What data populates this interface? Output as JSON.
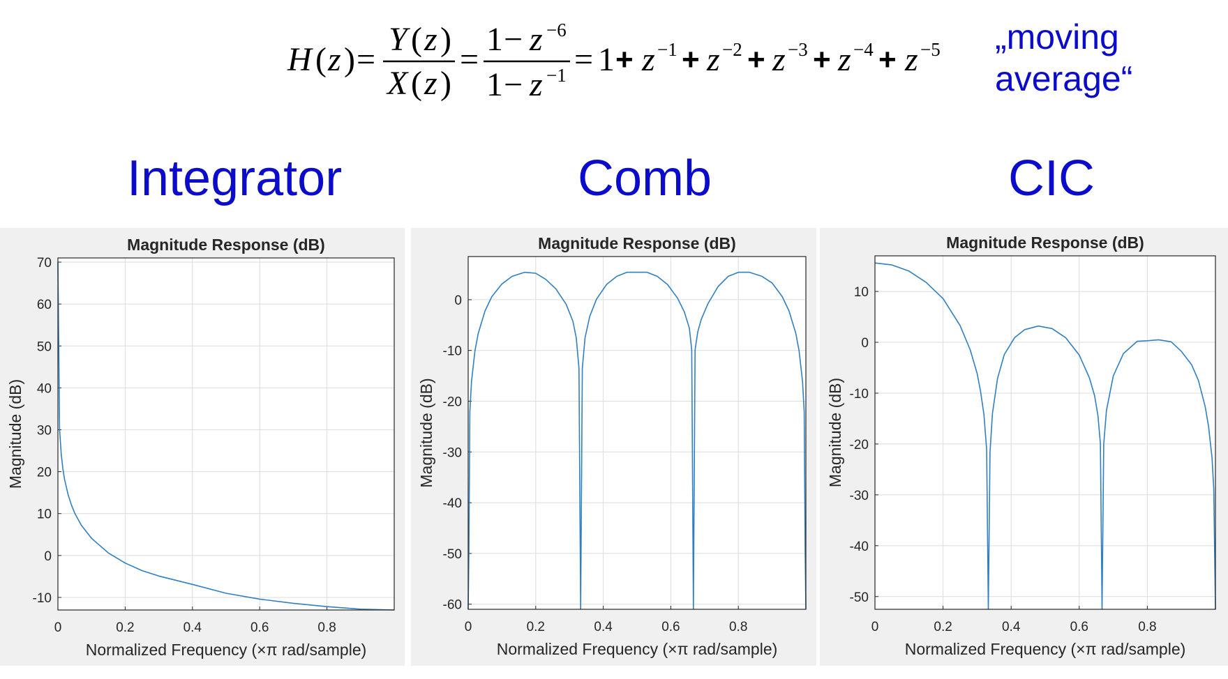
{
  "equation": {
    "lhs": "H",
    "arg": "z",
    "num_fn": "Y",
    "den_fn": "X",
    "one": "1",
    "minus": "−",
    "equals": "=",
    "plus": "+",
    "var": "z",
    "exp_num": "−6",
    "exp_den": "−1",
    "powers": [
      "−1",
      "−2",
      "−3",
      "−4",
      "−5"
    ]
  },
  "annotation": {
    "line1": "„moving",
    "line2": "average“"
  },
  "titles": {
    "integrator": "Integrator",
    "comb": "Comb",
    "cic": "CIC"
  },
  "colors": {
    "title": "#0b0bcc",
    "line": "#2f7fc1",
    "panel_bg": "#f0f0f0",
    "grid": "#dcdcdc",
    "axis": "#262626"
  },
  "chart_data": [
    {
      "type": "line",
      "panel": "integrator",
      "title": "Magnitude Response (dB)",
      "xlabel": "Normalized Frequency (×π rad/sample)",
      "ylabel": "Magnitude (dB)",
      "xlim": [
        0,
        1
      ],
      "ylim": [
        -13,
        71
      ],
      "xticks": [
        0,
        0.2,
        0.4,
        0.6,
        0.8
      ],
      "xtick_labels": [
        "0",
        "0.2",
        "0.4",
        "0.6",
        "0.8"
      ],
      "yticks": [
        -10,
        0,
        10,
        20,
        30,
        40,
        50,
        60,
        70
      ],
      "ytick_labels": [
        "-10",
        "0",
        "10",
        "20",
        "30",
        "40",
        "50",
        "60",
        "70"
      ],
      "grid": true,
      "series": [
        {
          "x": [
            0.0,
            0.005,
            0.01,
            0.015,
            0.02,
            0.03,
            0.04,
            0.05,
            0.07,
            0.1,
            0.15,
            0.2,
            0.25,
            0.3,
            0.4,
            0.5,
            0.6,
            0.7,
            0.8,
            0.9,
            1.0
          ],
          "y": [
            70,
            30.1,
            24.1,
            20.6,
            18.1,
            14.6,
            12.1,
            10.1,
            7.2,
            4.1,
            0.6,
            -1.8,
            -3.6,
            -4.9,
            -6.9,
            -9.0,
            -10.4,
            -11.4,
            -12.2,
            -12.8,
            -13.0
          ]
        }
      ]
    },
    {
      "type": "line",
      "panel": "comb",
      "title": "Magnitude Response (dB)",
      "xlabel": "Normalized Frequency (×π rad/sample)",
      "ylabel": "Magnitude (dB)",
      "xlim": [
        0,
        1
      ],
      "ylim": [
        -61,
        8.5
      ],
      "xticks": [
        0,
        0.2,
        0.4,
        0.6,
        0.8
      ],
      "xtick_labels": [
        "0",
        "0.2",
        "0.4",
        "0.6",
        "0.8"
      ],
      "yticks": [
        -60,
        -50,
        -40,
        -30,
        -20,
        -10,
        0
      ],
      "ytick_labels": [
        "-60",
        "-50",
        "-40",
        "-30",
        "-20",
        "-10",
        "0"
      ],
      "grid": true,
      "series": [
        {
          "x": [
            0.0,
            0.002,
            0.005,
            0.01,
            0.02,
            0.03,
            0.05,
            0.07,
            0.1,
            0.13,
            0.167,
            0.2,
            0.23,
            0.26,
            0.29,
            0.31,
            0.32,
            0.328,
            0.333,
            0.338,
            0.346,
            0.36,
            0.38,
            0.41,
            0.44,
            0.47,
            0.5,
            0.53,
            0.56,
            0.59,
            0.62,
            0.64,
            0.655,
            0.662,
            0.667,
            0.672,
            0.68,
            0.69,
            0.71,
            0.74,
            0.77,
            0.8,
            0.833,
            0.87,
            0.9,
            0.93,
            0.95,
            0.97,
            0.98,
            0.99,
            0.995,
            0.998,
            1.0
          ],
          "y": [
            -61,
            -50.0,
            -22.1,
            -16.1,
            -10.1,
            -6.6,
            -2.2,
            0.6,
            3.1,
            4.6,
            5.4,
            5.2,
            4.0,
            2.1,
            -0.9,
            -4.2,
            -7.5,
            -13.5,
            -61,
            -13.5,
            -7.5,
            -3.3,
            0.1,
            3.0,
            4.6,
            5.4,
            5.4,
            5.4,
            4.6,
            3.0,
            0.3,
            -2.4,
            -5.6,
            -9.9,
            -61,
            -9.9,
            -6.3,
            -3.9,
            -0.8,
            2.6,
            4.6,
            5.4,
            5.4,
            4.6,
            3.3,
            0.6,
            -2.2,
            -6.6,
            -10.1,
            -16.1,
            -22.1,
            -50.0,
            -61
          ]
        }
      ]
    },
    {
      "type": "line",
      "panel": "cic",
      "title": "Magnitude Response (dB)",
      "xlabel": "Normalized Frequency (×π rad/sample)",
      "ylabel": "Magnitude (dB)",
      "xlim": [
        0,
        1
      ],
      "ylim": [
        -52.5,
        17
      ],
      "xticks": [
        0,
        0.2,
        0.4,
        0.6,
        0.8
      ],
      "xtick_labels": [
        "0",
        "0.2",
        "0.4",
        "0.6",
        "0.8"
      ],
      "yticks": [
        -50,
        -40,
        -30,
        -20,
        -10,
        0,
        10
      ],
      "ytick_labels": [
        "-50",
        "-40",
        "-30",
        "-20",
        "-10",
        "0",
        "10"
      ],
      "grid": true,
      "series": [
        {
          "x": [
            0.0,
            0.05,
            0.1,
            0.15,
            0.2,
            0.25,
            0.28,
            0.3,
            0.31,
            0.32,
            0.328,
            0.333,
            0.338,
            0.345,
            0.36,
            0.38,
            0.41,
            0.44,
            0.48,
            0.52,
            0.56,
            0.6,
            0.63,
            0.645,
            0.655,
            0.662,
            0.667,
            0.672,
            0.68,
            0.7,
            0.73,
            0.77,
            0.8,
            0.833,
            0.87,
            0.9,
            0.93,
            0.95,
            0.97,
            0.98,
            0.99,
            0.995,
            1.0
          ],
          "y": [
            15.6,
            15.2,
            14.0,
            11.8,
            8.6,
            3.3,
            -1.5,
            -6.1,
            -9.6,
            -14.2,
            -21.1,
            -52.5,
            -21.6,
            -14.0,
            -7.1,
            -2.4,
            0.9,
            2.5,
            3.2,
            2.7,
            0.9,
            -2.5,
            -7.0,
            -10.5,
            -14.4,
            -19.9,
            -52.5,
            -20.0,
            -13.4,
            -6.6,
            -2.2,
            0.2,
            0.3,
            0.5,
            0.1,
            -1.8,
            -4.4,
            -7.5,
            -12.7,
            -16.6,
            -22.7,
            -28.8,
            -52.5
          ]
        }
      ]
    }
  ]
}
